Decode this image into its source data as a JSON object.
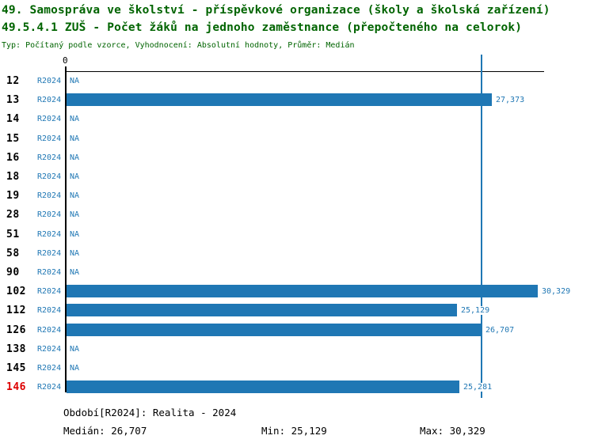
{
  "page": {
    "background": "#ffffff"
  },
  "header": {
    "title_line1": "49. Samospráva ve školství - příspěvkové organizace (školy a školská zařízení)",
    "title_line2": "49.5.4.1 ZUŠ - Počet žáků na jednoho zaměstnance (přepočteného na celorok)",
    "subtitle": "Typ: Počítaný podle vzorce, Vyhodnocení: Absolutní hodnoty, Průměr: Medián"
  },
  "chart_data": {
    "type": "bar",
    "orientation": "horizontal",
    "title": "49.5.4.1 ZUŠ - Počet žáků na jednoho zaměstnance (přepočteného na celorok)",
    "x_axis": {
      "zero_label": "0",
      "min": 0,
      "max_visible": 30700,
      "gridlines": false
    },
    "legend": "none",
    "period_series_name": "R2024",
    "median_value": 26707,
    "min_value": 25129,
    "max_value": 30329,
    "categories": [
      "12",
      "13",
      "14",
      "15",
      "16",
      "18",
      "19",
      "28",
      "51",
      "58",
      "90",
      "102",
      "112",
      "126",
      "138",
      "145",
      "146"
    ],
    "series": [
      {
        "name": "R2024",
        "values": [
          null,
          27373,
          null,
          null,
          null,
          null,
          null,
          null,
          null,
          null,
          null,
          30329,
          25129,
          26707,
          null,
          null,
          25281
        ]
      }
    ],
    "rows": [
      {
        "category": "12",
        "period": "R2024",
        "value": null,
        "label": "NA"
      },
      {
        "category": "13",
        "period": "R2024",
        "value": 27373,
        "label": "27,373"
      },
      {
        "category": "14",
        "period": "R2024",
        "value": null,
        "label": "NA"
      },
      {
        "category": "15",
        "period": "R2024",
        "value": null,
        "label": "NA"
      },
      {
        "category": "16",
        "period": "R2024",
        "value": null,
        "label": "NA"
      },
      {
        "category": "18",
        "period": "R2024",
        "value": null,
        "label": "NA"
      },
      {
        "category": "19",
        "period": "R2024",
        "value": null,
        "label": "NA"
      },
      {
        "category": "28",
        "period": "R2024",
        "value": null,
        "label": "NA"
      },
      {
        "category": "51",
        "period": "R2024",
        "value": null,
        "label": "NA"
      },
      {
        "category": "58",
        "period": "R2024",
        "value": null,
        "label": "NA"
      },
      {
        "category": "90",
        "period": "R2024",
        "value": null,
        "label": "NA"
      },
      {
        "category": "102",
        "period": "R2024",
        "value": 30329,
        "label": "30,329"
      },
      {
        "category": "112",
        "period": "R2024",
        "value": 25129,
        "label": "25,129"
      },
      {
        "category": "126",
        "period": "R2024",
        "value": 26707,
        "label": "26,707"
      },
      {
        "category": "138",
        "period": "R2024",
        "value": null,
        "label": "NA"
      },
      {
        "category": "145",
        "period": "R2024",
        "value": null,
        "label": "NA"
      },
      {
        "category": "146",
        "period": "R2024",
        "value": 25281,
        "label": "25,281",
        "highlight": true
      }
    ]
  },
  "footer": {
    "period": "Období[R2024]: Realita - 2024",
    "median": "Medián: 26,707",
    "min": "Min: 25,129",
    "max": "Max: 30,329"
  },
  "colors": {
    "bar_blue": "#1f77b4",
    "median_line_blue": "#1f77b4",
    "text_blue": "#1f77b4",
    "title_green": "#006400",
    "highlight_red": "#dd0000",
    "axis_black": "#000000"
  }
}
